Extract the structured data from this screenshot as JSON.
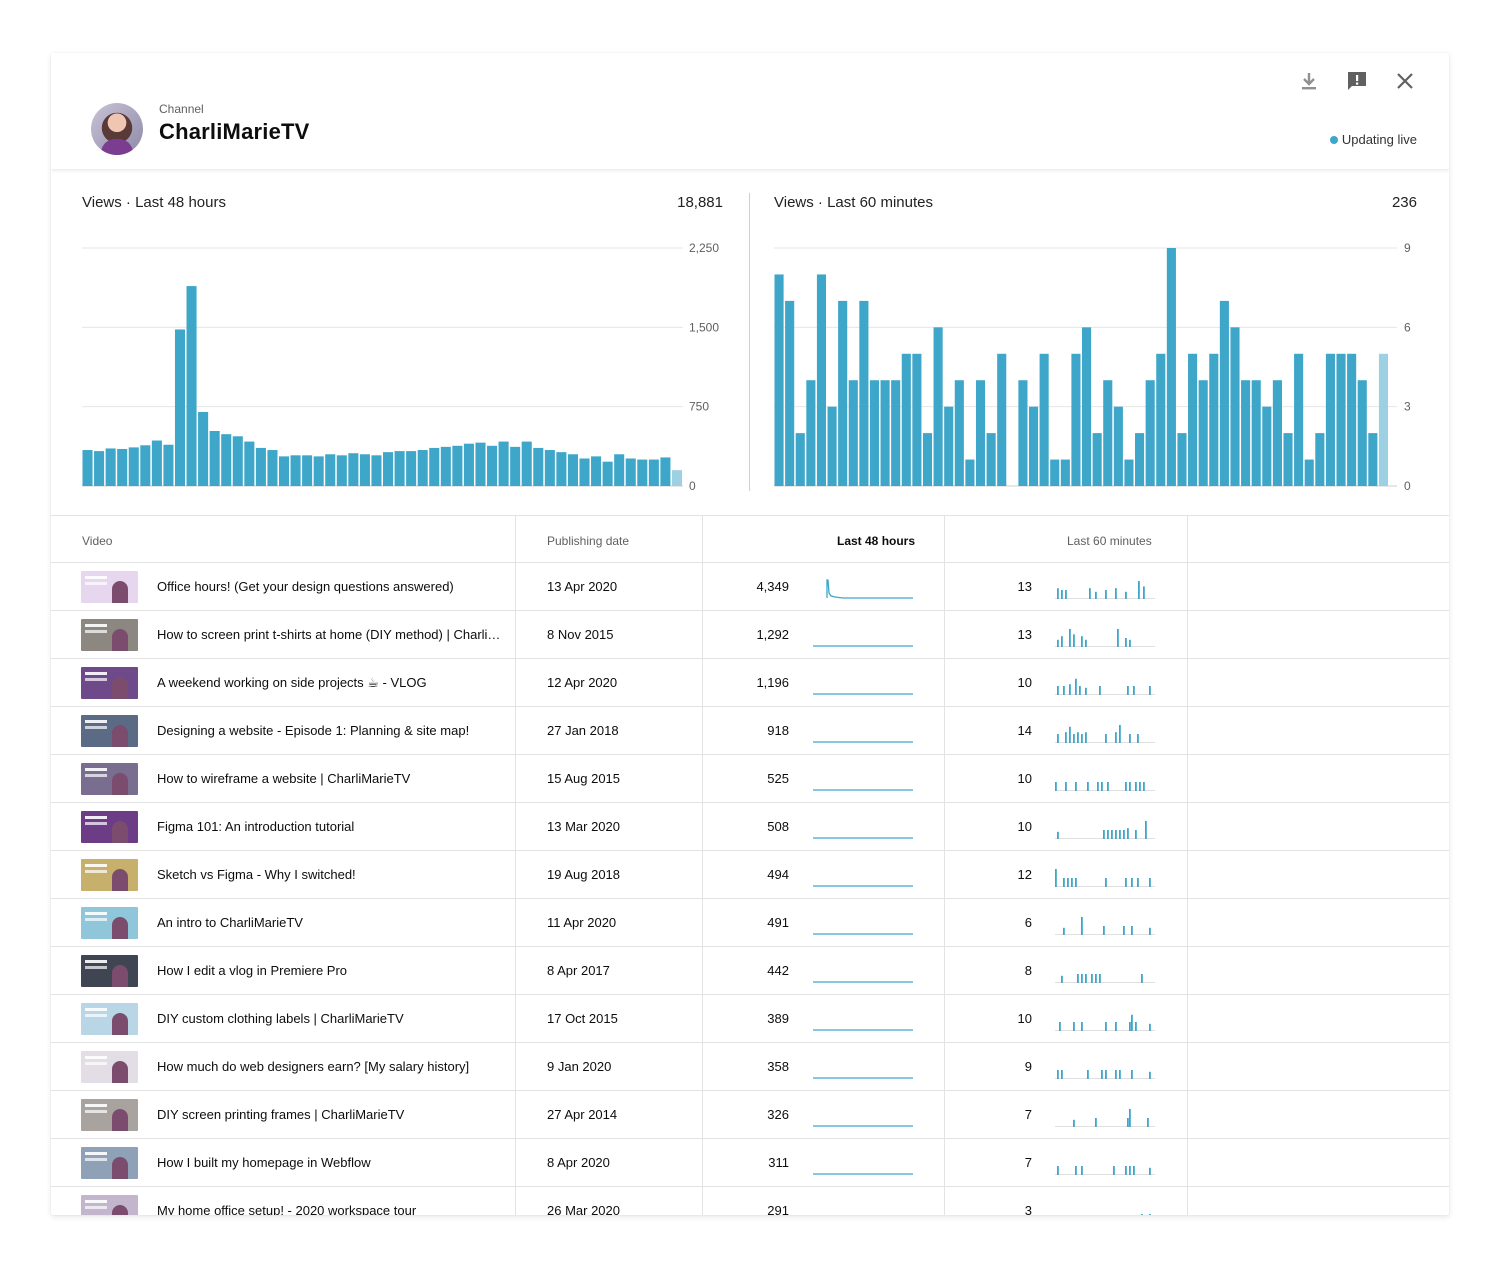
{
  "header": {
    "channel_label": "Channel",
    "channel_name": "CharliMarieTV",
    "live_label": "Updating live",
    "icons": [
      "download-icon",
      "feedback-icon",
      "close-icon"
    ]
  },
  "colors": {
    "accent": "#3ea6c9",
    "accent_light": "#9dd0e3"
  },
  "left_chart": {
    "title": "Views · Last 48 hours",
    "total": "18,881"
  },
  "right_chart": {
    "title": "Views · Last 60 minutes",
    "total": "236"
  },
  "chart_data": [
    {
      "type": "bar",
      "title": "Views · Last 48 hours",
      "ylim": [
        0,
        2250
      ],
      "y_ticks": [
        "2,250",
        "1,500",
        "750",
        "0"
      ],
      "y_tick_values": [
        2250,
        1500,
        750,
        0
      ],
      "values": [
        340,
        330,
        355,
        350,
        365,
        385,
        430,
        390,
        1480,
        1890,
        700,
        520,
        490,
        470,
        420,
        360,
        340,
        280,
        290,
        290,
        280,
        300,
        290,
        310,
        300,
        290,
        320,
        330,
        330,
        340,
        360,
        370,
        380,
        400,
        410,
        380,
        420,
        370,
        420,
        360,
        340,
        320,
        300,
        260,
        280,
        230,
        300,
        260,
        250,
        250,
        270,
        150
      ],
      "last_partial": true
    },
    {
      "type": "bar",
      "title": "Views · Last 60 minutes",
      "ylim": [
        0,
        9
      ],
      "y_ticks": [
        "9",
        "6",
        "3",
        "0"
      ],
      "y_tick_values": [
        9,
        6,
        3,
        0
      ],
      "values": [
        8,
        7,
        2,
        4,
        8,
        3,
        7,
        4,
        7,
        4,
        4,
        4,
        5,
        5,
        2,
        6,
        3,
        4,
        1,
        4,
        2,
        5,
        0,
        4,
        3,
        5,
        1,
        1,
        5,
        6,
        2,
        4,
        3,
        1,
        2,
        4,
        5,
        9,
        2,
        5,
        4,
        5,
        7,
        6,
        4,
        4,
        3,
        4,
        2,
        5,
        1,
        2,
        5,
        5,
        5,
        4,
        2,
        5
      ],
      "last_partial": true
    }
  ],
  "table": {
    "headers": {
      "video": "Video",
      "date": "Publishing date",
      "last48": "Last 48 hours",
      "last60": "Last 60 minutes"
    },
    "rows": [
      {
        "title": "Office hours! (Get your design questions answered)",
        "date": "13 Apr 2020",
        "views48": "4,349",
        "views60": "13",
        "thumb": "#e7d7ee",
        "spike": true,
        "ticks60": [
          [
            2,
            6
          ],
          [
            6,
            5
          ],
          [
            10,
            5
          ],
          [
            34,
            6
          ],
          [
            40,
            4
          ],
          [
            50,
            5
          ],
          [
            60,
            6
          ],
          [
            70,
            4
          ],
          [
            83,
            10
          ],
          [
            88,
            7
          ]
        ]
      },
      {
        "title": "How to screen print t-shirts at home (DIY method) | CharliM…",
        "date": "8 Nov 2015",
        "views48": "1,292",
        "views60": "13",
        "thumb": "#8c8780",
        "spike": false,
        "ticks60": [
          [
            2,
            4
          ],
          [
            6,
            6
          ],
          [
            14,
            10
          ],
          [
            18,
            7
          ],
          [
            26,
            6
          ],
          [
            30,
            4
          ],
          [
            62,
            10
          ],
          [
            70,
            5
          ],
          [
            74,
            4
          ]
        ]
      },
      {
        "title": "A weekend working on side projects ☕ - VLOG",
        "date": "12 Apr 2020",
        "views48": "1,196",
        "views60": "10",
        "thumb": "#6f4a8a",
        "spike": false,
        "ticks60": [
          [
            2,
            5
          ],
          [
            8,
            5
          ],
          [
            14,
            6
          ],
          [
            20,
            9
          ],
          [
            24,
            5
          ],
          [
            30,
            4
          ],
          [
            44,
            5
          ],
          [
            72,
            5
          ],
          [
            78,
            5
          ],
          [
            94,
            5
          ]
        ]
      },
      {
        "title": "Designing a website - Episode 1: Planning & site map!",
        "date": "27 Jan 2018",
        "views48": "918",
        "views60": "14",
        "thumb": "#5b6b86",
        "spike": false,
        "ticks60": [
          [
            2,
            5
          ],
          [
            10,
            6
          ],
          [
            14,
            9
          ],
          [
            18,
            5
          ],
          [
            22,
            6
          ],
          [
            26,
            5
          ],
          [
            30,
            6
          ],
          [
            50,
            5
          ],
          [
            60,
            6
          ],
          [
            64,
            10
          ],
          [
            74,
            5
          ],
          [
            82,
            5
          ]
        ]
      },
      {
        "title": "How to wireframe a website | CharliMarieTV",
        "date": "15 Aug 2015",
        "views48": "525",
        "views60": "10",
        "thumb": "#7a6e90",
        "spike": false,
        "ticks60": [
          [
            0,
            5
          ],
          [
            10,
            5
          ],
          [
            20,
            5
          ],
          [
            32,
            5
          ],
          [
            42,
            5
          ],
          [
            46,
            5
          ],
          [
            52,
            5
          ],
          [
            70,
            5
          ],
          [
            74,
            5
          ],
          [
            80,
            5
          ],
          [
            84,
            5
          ],
          [
            88,
            5
          ]
        ]
      },
      {
        "title": "Figma 101: An introduction tutorial",
        "date": "13 Mar 2020",
        "views48": "508",
        "views60": "10",
        "thumb": "#6d3c86",
        "spike": false,
        "ticks60": [
          [
            2,
            4
          ],
          [
            48,
            5
          ],
          [
            52,
            5
          ],
          [
            56,
            5
          ],
          [
            60,
            5
          ],
          [
            64,
            5
          ],
          [
            68,
            5
          ],
          [
            72,
            6
          ],
          [
            80,
            5
          ],
          [
            90,
            10
          ]
        ]
      },
      {
        "title": "Sketch vs Figma - Why I switched!",
        "date": "19 Aug 2018",
        "views48": "494",
        "views60": "12",
        "thumb": "#c7b06b",
        "spike": false,
        "ticks60": [
          [
            0,
            10
          ],
          [
            8,
            5
          ],
          [
            12,
            5
          ],
          [
            16,
            5
          ],
          [
            20,
            5
          ],
          [
            50,
            5
          ],
          [
            70,
            5
          ],
          [
            76,
            5
          ],
          [
            82,
            5
          ],
          [
            94,
            5
          ]
        ]
      },
      {
        "title": "An intro to CharliMarieTV",
        "date": "11 Apr 2020",
        "views48": "491",
        "views60": "6",
        "thumb": "#8fc6d9",
        "spike": false,
        "ticks60": [
          [
            8,
            4
          ],
          [
            26,
            10
          ],
          [
            48,
            5
          ],
          [
            68,
            5
          ],
          [
            76,
            5
          ],
          [
            94,
            4
          ]
        ]
      },
      {
        "title": "How I edit a vlog in Premiere Pro",
        "date": "8 Apr 2017",
        "views48": "442",
        "views60": "8",
        "thumb": "#3f4552",
        "spike": false,
        "ticks60": [
          [
            6,
            4
          ],
          [
            22,
            5
          ],
          [
            26,
            5
          ],
          [
            30,
            5
          ],
          [
            36,
            5
          ],
          [
            40,
            5
          ],
          [
            44,
            5
          ],
          [
            86,
            5
          ]
        ]
      },
      {
        "title": "DIY custom clothing labels | CharliMarieTV",
        "date": "17 Oct 2015",
        "views48": "389",
        "views60": "10",
        "thumb": "#b9d6e6",
        "spike": false,
        "ticks60": [
          [
            4,
            5
          ],
          [
            18,
            5
          ],
          [
            26,
            5
          ],
          [
            50,
            5
          ],
          [
            60,
            5
          ],
          [
            74,
            5
          ],
          [
            76,
            9
          ],
          [
            80,
            5
          ],
          [
            94,
            4
          ]
        ]
      },
      {
        "title": "How much do web designers earn? [My salary history]",
        "date": "9 Jan 2020",
        "views48": "358",
        "views60": "9",
        "thumb": "#e3dde6",
        "spike": false,
        "ticks60": [
          [
            2,
            5
          ],
          [
            6,
            5
          ],
          [
            32,
            5
          ],
          [
            46,
            5
          ],
          [
            50,
            5
          ],
          [
            60,
            5
          ],
          [
            64,
            5
          ],
          [
            76,
            5
          ],
          [
            94,
            4
          ]
        ]
      },
      {
        "title": "DIY screen printing frames | CharliMarieTV",
        "date": "27 Apr 2014",
        "views48": "326",
        "views60": "7",
        "thumb": "#a9a3a0",
        "spike": false,
        "ticks60": [
          [
            18,
            4
          ],
          [
            40,
            5
          ],
          [
            72,
            5
          ],
          [
            74,
            10
          ],
          [
            92,
            5
          ]
        ]
      },
      {
        "title": "How I built my homepage in Webflow",
        "date": "8 Apr 2020",
        "views48": "311",
        "views60": "7",
        "thumb": "#8fa1b6",
        "spike": false,
        "ticks60": [
          [
            2,
            5
          ],
          [
            20,
            5
          ],
          [
            26,
            5
          ],
          [
            58,
            5
          ],
          [
            70,
            5
          ],
          [
            74,
            5
          ],
          [
            78,
            5
          ],
          [
            94,
            4
          ]
        ]
      },
      {
        "title": "My home office setup! - 2020 workspace tour",
        "date": "26 Mar 2020",
        "views48": "291",
        "views60": "3",
        "thumb": "#c3b6cc",
        "spike": false,
        "ticks60": [
          [
            58,
            4
          ],
          [
            86,
            5
          ],
          [
            94,
            5
          ]
        ]
      }
    ]
  }
}
